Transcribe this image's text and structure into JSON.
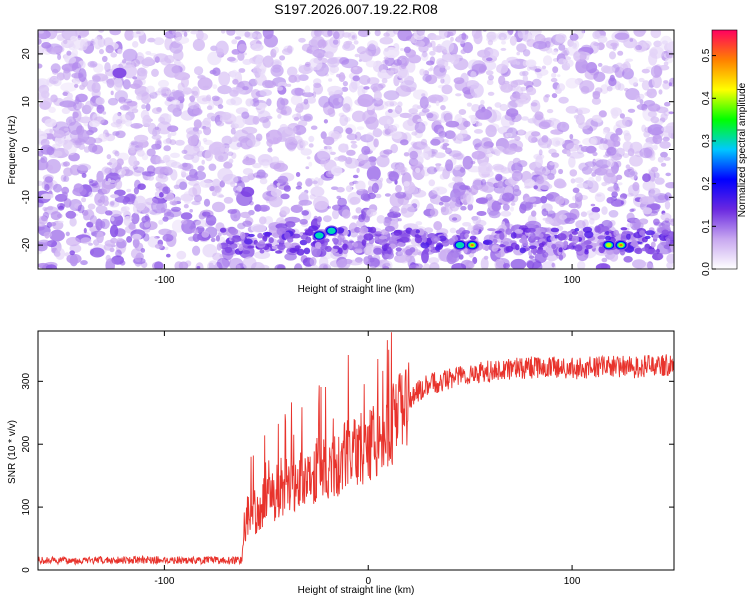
{
  "chart_data": [
    {
      "type": "heatmap",
      "title": "S197.2026.007.19.22.R08",
      "xlabel": "Height of straight line (km)",
      "ylabel": "Frequency (Hz)",
      "xlim": [
        -162,
        150
      ],
      "ylim": [
        -25,
        25
      ],
      "x_ticks": [
        -100,
        0,
        100
      ],
      "x_tick_labels": [
        "-100",
        "0",
        "100"
      ],
      "y_ticks": [
        -20,
        -10,
        0,
        10,
        20
      ],
      "y_tick_labels": [
        "-20",
        "-10",
        "0",
        "10",
        "20"
      ],
      "colorbar": {
        "label": "Normalized spectral amplitude",
        "range": [
          0,
          0.56
        ],
        "ticks": [
          0,
          0.1,
          0.2,
          0.3,
          0.4,
          0.5
        ],
        "tick_labels": [
          "0.0",
          "0.1",
          "0.2",
          "0.3",
          "0.4",
          "0.5"
        ],
        "colors": [
          "#ffffff",
          "#c8a8f0",
          "#6a28e0",
          "#0000ff",
          "#00c8ff",
          "#00ff00",
          "#ffff00",
          "#ff8000",
          "#ff0060"
        ]
      },
      "background_level": 0.06,
      "signal_band": {
        "frequency": -19,
        "x_start": -75,
        "x_end": 150
      },
      "hotspots": [
        {
          "x": -24,
          "f": -18,
          "value": 0.36
        },
        {
          "x": -18,
          "f": -17,
          "value": 0.33
        },
        {
          "x": 45,
          "f": -20,
          "value": 0.38
        },
        {
          "x": 51,
          "f": -20,
          "value": 0.55
        },
        {
          "x": 118,
          "f": -20,
          "value": 0.4
        },
        {
          "x": 124,
          "f": -20,
          "value": 0.52
        },
        {
          "x": -122,
          "f": 16,
          "value": 0.16
        }
      ]
    },
    {
      "type": "line",
      "title": "",
      "xlabel": "Height of straight line (km)",
      "ylabel": "SNR (10 * v/v)",
      "xlim": [
        -162,
        150
      ],
      "ylim": [
        0,
        380
      ],
      "x_ticks": [
        -100,
        0,
        100
      ],
      "x_tick_labels": [
        "-100",
        "0",
        "100"
      ],
      "y_ticks": [
        0,
        100,
        200,
        300
      ],
      "y_tick_labels": [
        "0",
        "100",
        "200",
        "300"
      ],
      "series": [
        {
          "name": "SNR",
          "color": "#e8332c",
          "x": [
            -162,
            -140,
            -120,
            -100,
            -80,
            -62,
            -60,
            -55,
            -50,
            -45,
            -40,
            -35,
            -30,
            -25,
            -20,
            -15,
            -10,
            -5,
            0,
            5,
            10,
            15,
            20,
            25,
            30,
            40,
            50,
            60,
            70,
            80,
            90,
            100,
            110,
            120,
            130,
            140,
            150
          ],
          "y": [
            15,
            15,
            16,
            16,
            15,
            16,
            85,
            95,
            115,
            120,
            135,
            140,
            150,
            155,
            160,
            170,
            185,
            190,
            200,
            210,
            225,
            245,
            270,
            285,
            295,
            305,
            312,
            316,
            320,
            322,
            322,
            320,
            322,
            324,
            322,
            325,
            327
          ]
        }
      ]
    }
  ]
}
